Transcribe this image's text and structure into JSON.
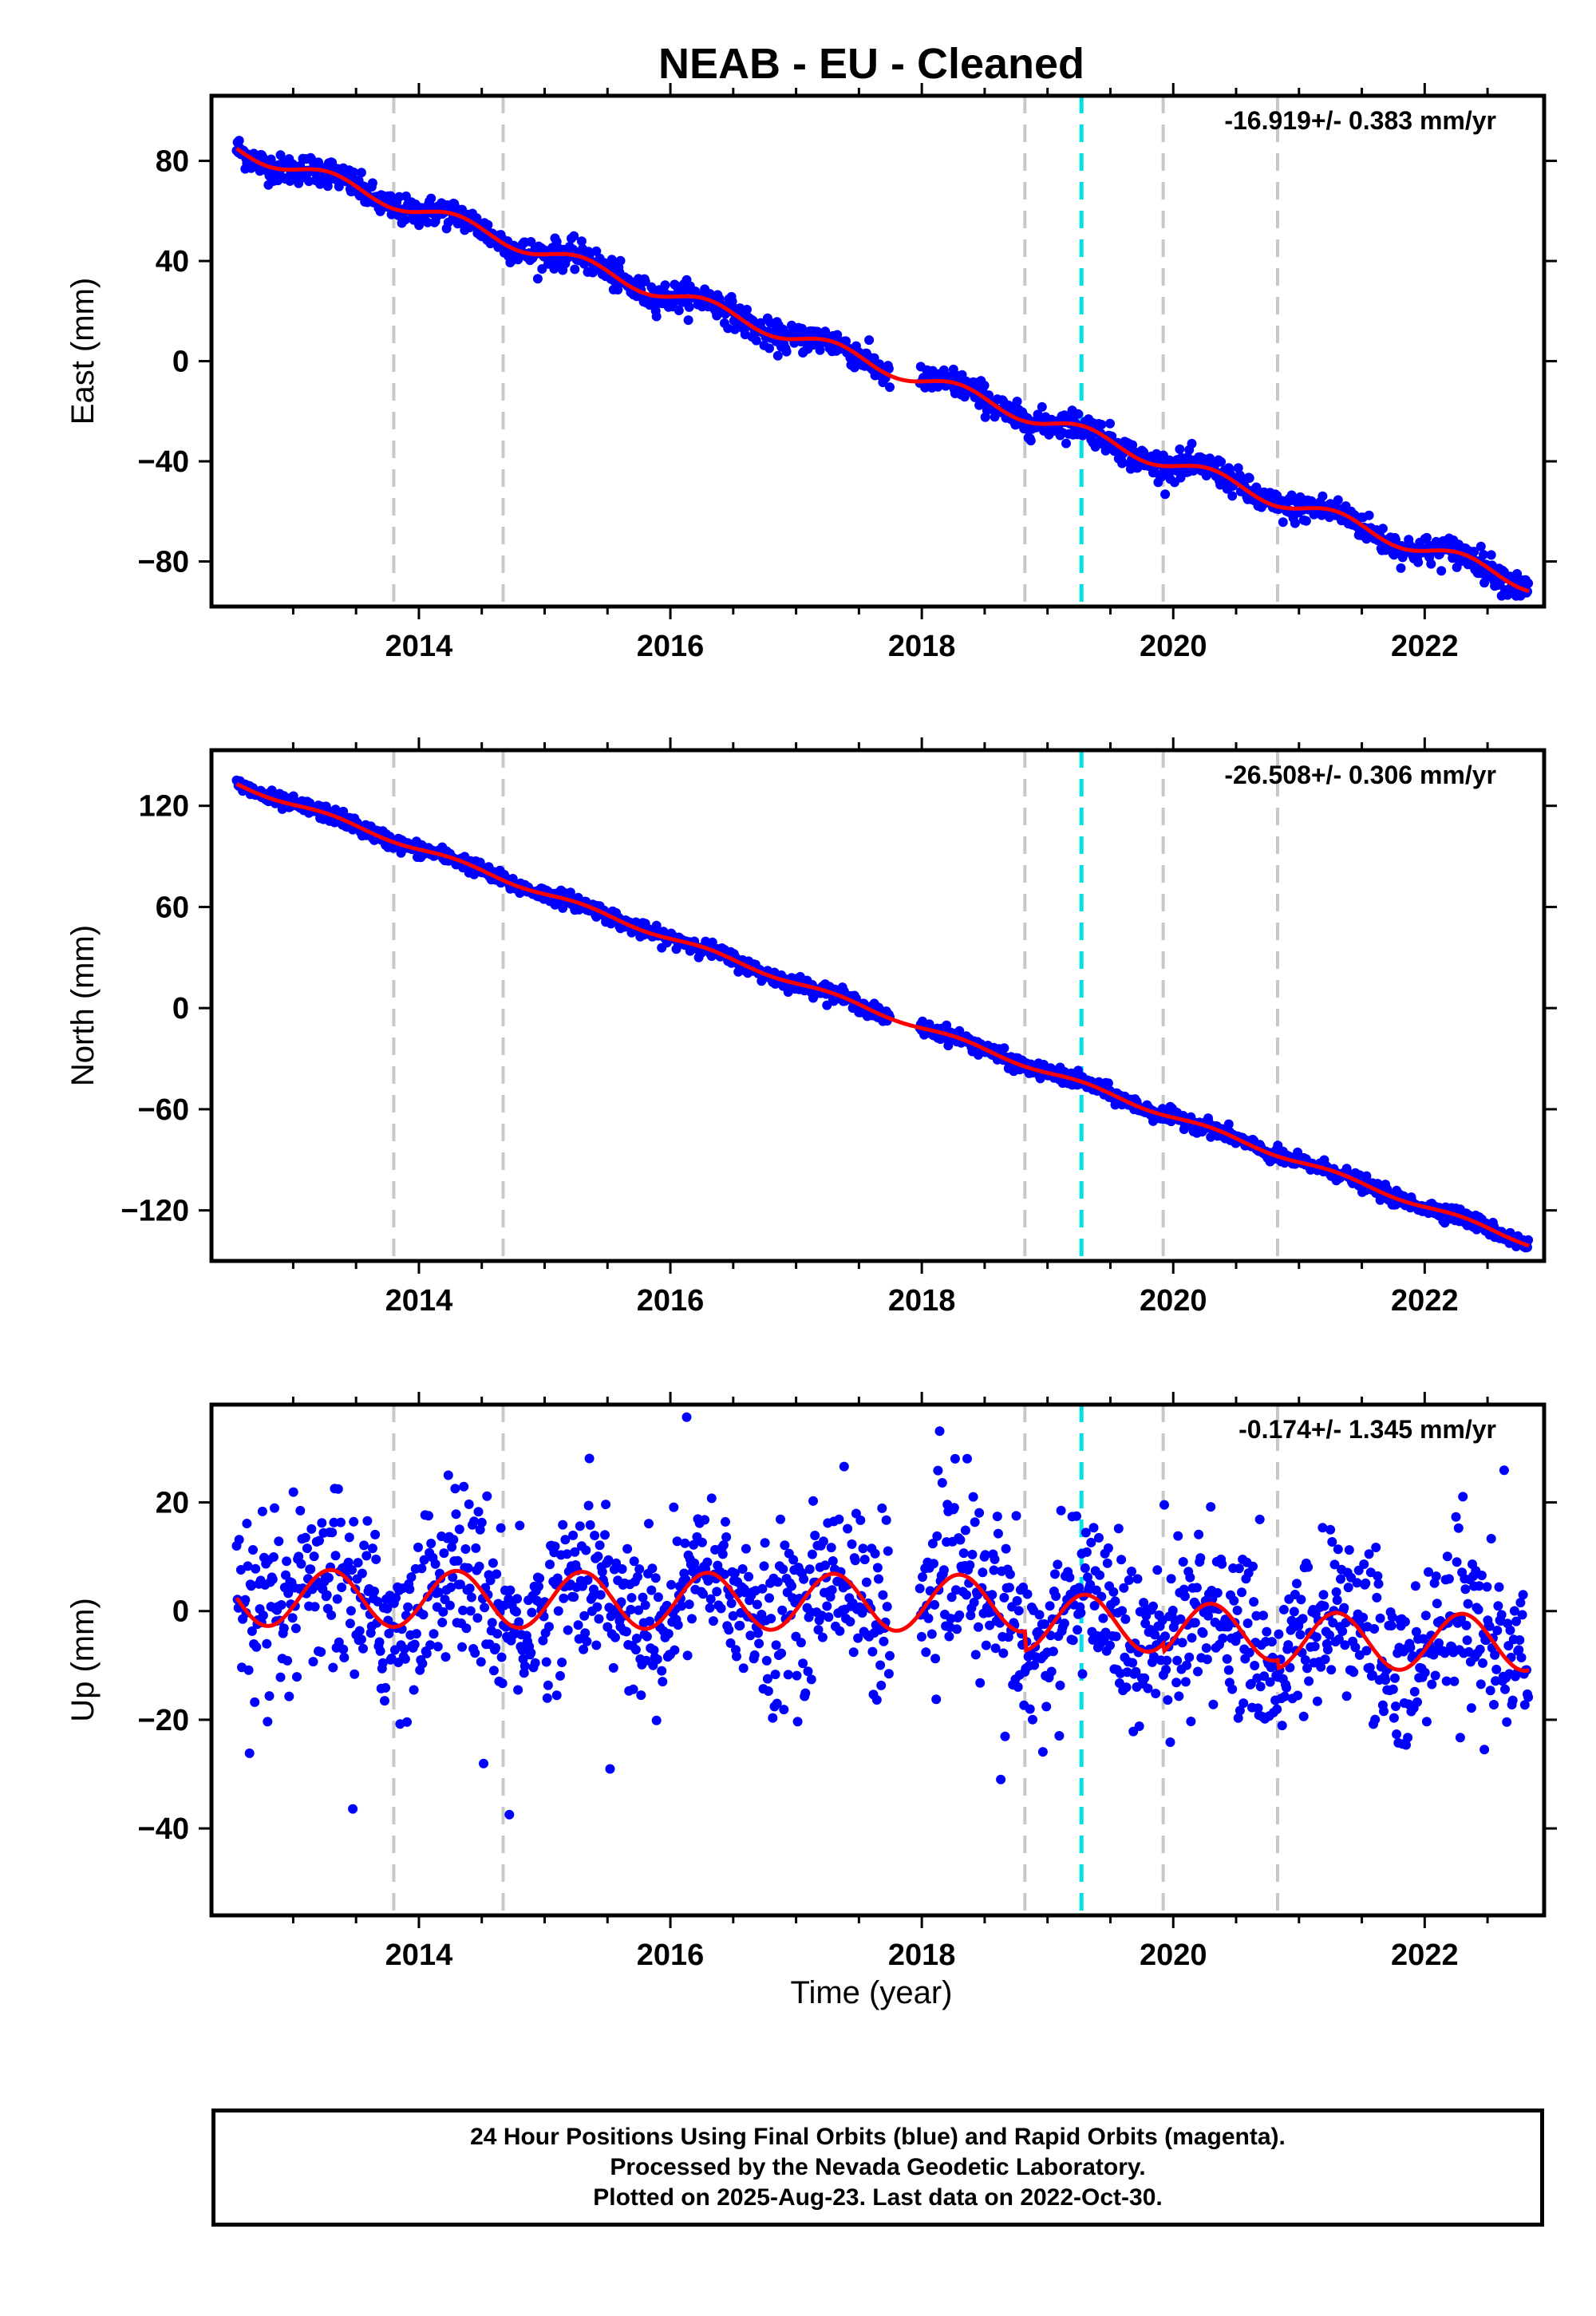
{
  "title": "NEAB  - EU - Cleaned",
  "colors": {
    "data_points": "#0000ff",
    "fit_line": "#ff0000",
    "equipment_change": "#c8c8c8",
    "earthquake_marker": "#00e0e6",
    "frame": "#000000"
  },
  "chart_data": [
    {
      "type": "scatter",
      "name": "east",
      "ylabel": "East (mm)",
      "xlabel": "",
      "xlim": [
        2012.35,
        2022.95
      ],
      "ylim": [
        -98,
        106
      ],
      "yticks": [
        -80,
        -40,
        0,
        40,
        80
      ],
      "xticks": [
        2014,
        2016,
        2018,
        2020,
        2022
      ],
      "annotation": "-16.919+/- 0.383 mm/yr",
      "rate": -16.919,
      "intercept": 85,
      "start": 2012.55,
      "seasonal_amp": 3.0,
      "noise": 2.8,
      "grid": false
    },
    {
      "type": "scatter",
      "name": "north",
      "ylabel": "North (mm)",
      "xlabel": "",
      "xlim": [
        2012.35,
        2022.95
      ],
      "ylim": [
        -150,
        153
      ],
      "yticks": [
        -120,
        -60,
        0,
        60,
        120
      ],
      "xticks": [
        2014,
        2016,
        2018,
        2020,
        2022
      ],
      "annotation": "-26.508+/- 0.306 mm/yr",
      "rate": -26.508,
      "intercept": 133,
      "start": 2012.55,
      "seasonal_amp": 1.5,
      "noise": 2.2,
      "grid": false
    },
    {
      "type": "scatter",
      "name": "up",
      "ylabel": "Up (mm)",
      "xlabel": "Time (year)",
      "xlim": [
        2012.35,
        2022.95
      ],
      "ylim": [
        -56,
        38
      ],
      "yticks": [
        -40,
        -20,
        0,
        20
      ],
      "xticks": [
        2014,
        2016,
        2018,
        2020,
        2022
      ],
      "annotation": "-0.174+/- 1.345 mm/yr",
      "rate": -0.174,
      "intercept": 2.5,
      "start": 2012.55,
      "seasonal_amp": 5.2,
      "noise": 7.5,
      "grid": false
    }
  ],
  "equipment_changes": [
    2013.8,
    2014.67,
    2018.82,
    2019.92,
    2020.83
  ],
  "earthquake_markers": [
    2019.27
  ],
  "data_gap": [
    2017.75,
    2017.98
  ],
  "footer": {
    "line1": "24 Hour Positions Using Final Orbits (blue) and Rapid Orbits (magenta).",
    "line2": "Processed by the Nevada Geodetic Laboratory.",
    "line3": "Plotted on 2025-Aug-23. Last data on 2022-Oct-30."
  }
}
